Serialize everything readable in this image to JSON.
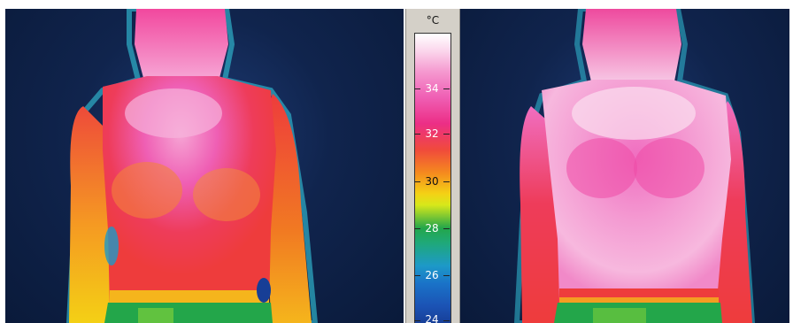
{
  "image": {
    "scene": "thermal camera comparison",
    "colors": {
      "background": "#10244d",
      "hot_pink": "#f06ec0",
      "red": "#ee3c3c",
      "orange": "#f59a22",
      "yellow": "#f4d015",
      "green": "#23a64a",
      "blue": "#1a73c8"
    }
  },
  "scale": {
    "unit": "°C",
    "labels": [
      "34",
      "32",
      "30",
      "28",
      "26",
      "24"
    ]
  }
}
